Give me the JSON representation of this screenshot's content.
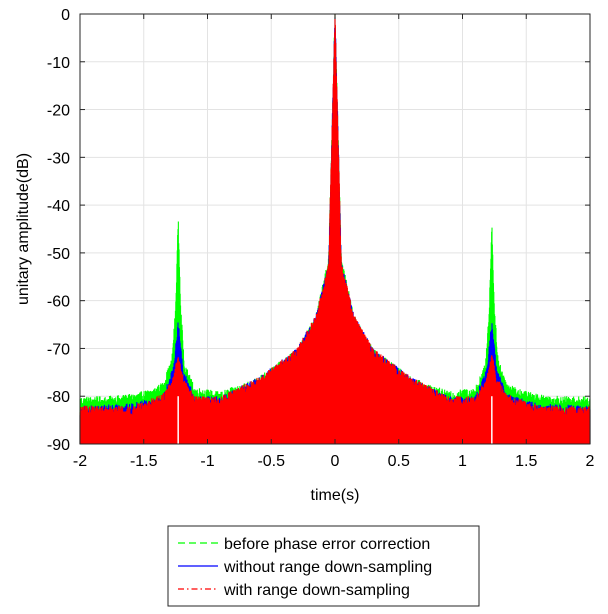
{
  "chart_data": {
    "type": "line",
    "title": "",
    "xlabel": "time(s)",
    "ylabel": "unitary amplitude(dB)",
    "xlim": [
      -2,
      2
    ],
    "ylim": [
      -90,
      0
    ],
    "grid": true,
    "legend_position": "bottom-center outside",
    "x_ticks": [
      -2,
      -1.5,
      -1,
      -0.5,
      0,
      0.5,
      1,
      1.5,
      2
    ],
    "x_tick_labels": [
      "-2",
      "-1.5",
      "-1",
      "-0.5",
      "0",
      "0.5",
      "1",
      "1.5",
      "2"
    ],
    "y_ticks": [
      0,
      -10,
      -20,
      -30,
      -40,
      -50,
      -60,
      -70,
      -80,
      -90
    ],
    "y_tick_labels": [
      "0",
      "-10",
      "-20",
      "-30",
      "-40",
      "-50",
      "-60",
      "-70",
      "-80",
      "-90"
    ],
    "series": [
      {
        "name": "before phase error correction",
        "color": "#00ff00",
        "line_style": "dashed",
        "envelope": [
          [
            -2,
            -81
          ],
          [
            -1.8,
            -81
          ],
          [
            -1.6,
            -80.5
          ],
          [
            -1.45,
            -79.5
          ],
          [
            -1.35,
            -78
          ],
          [
            -1.28,
            -73
          ],
          [
            -1.25,
            -62
          ],
          [
            -1.23,
            -43
          ],
          [
            -1.21,
            -62
          ],
          [
            -1.18,
            -74
          ],
          [
            -1.1,
            -79
          ],
          [
            -0.9,
            -80
          ],
          [
            -0.6,
            -77
          ],
          [
            -0.3,
            -71
          ],
          [
            -0.15,
            -64
          ],
          [
            -0.05,
            -52
          ],
          [
            0,
            0
          ],
          [
            0.05,
            -52
          ],
          [
            0.15,
            -64
          ],
          [
            0.3,
            -71
          ],
          [
            0.6,
            -77
          ],
          [
            0.9,
            -80
          ],
          [
            1.1,
            -79
          ],
          [
            1.18,
            -74
          ],
          [
            1.21,
            -62
          ],
          [
            1.23,
            -44
          ],
          [
            1.25,
            -62
          ],
          [
            1.28,
            -73
          ],
          [
            1.35,
            -78
          ],
          [
            1.45,
            -79.5
          ],
          [
            1.6,
            -80.5
          ],
          [
            1.8,
            -81
          ],
          [
            2,
            -81
          ]
        ]
      },
      {
        "name": "without range down-sampling",
        "color": "#0000ff",
        "line_style": "solid",
        "envelope": [
          [
            -2,
            -83
          ],
          [
            -1.6,
            -82.5
          ],
          [
            -1.35,
            -80.5
          ],
          [
            -1.27,
            -75
          ],
          [
            -1.23,
            -65
          ],
          [
            -1.19,
            -75
          ],
          [
            -1.1,
            -81
          ],
          [
            -0.9,
            -81
          ],
          [
            -0.6,
            -77
          ],
          [
            -0.3,
            -71
          ],
          [
            -0.15,
            -64
          ],
          [
            -0.05,
            -53
          ],
          [
            0,
            0
          ],
          [
            0.05,
            -53
          ],
          [
            0.15,
            -64
          ],
          [
            0.3,
            -71
          ],
          [
            0.6,
            -77
          ],
          [
            0.9,
            -81
          ],
          [
            1.1,
            -81
          ],
          [
            1.19,
            -75
          ],
          [
            1.23,
            -65
          ],
          [
            1.27,
            -75
          ],
          [
            1.35,
            -80.5
          ],
          [
            1.6,
            -82.5
          ],
          [
            2,
            -83
          ]
        ]
      },
      {
        "name": "with range down-sampling",
        "color": "#ff0000",
        "line_style": "dash-dot",
        "envelope": [
          [
            -2,
            -83
          ],
          [
            -1.6,
            -83
          ],
          [
            -1.35,
            -80.5
          ],
          [
            -1.27,
            -77
          ],
          [
            -1.23,
            -72
          ],
          [
            -1.19,
            -77
          ],
          [
            -1.1,
            -81
          ],
          [
            -0.9,
            -81
          ],
          [
            -0.6,
            -77
          ],
          [
            -0.3,
            -71
          ],
          [
            -0.15,
            -64
          ],
          [
            -0.05,
            -53
          ],
          [
            0,
            0
          ],
          [
            0.05,
            -53
          ],
          [
            0.15,
            -64
          ],
          [
            0.3,
            -71
          ],
          [
            0.6,
            -77
          ],
          [
            0.9,
            -81
          ],
          [
            1.1,
            -81
          ],
          [
            1.19,
            -77
          ],
          [
            1.23,
            -72
          ],
          [
            1.27,
            -77
          ],
          [
            1.35,
            -80.5
          ],
          [
            1.6,
            -83
          ],
          [
            2,
            -83
          ]
        ]
      }
    ]
  }
}
